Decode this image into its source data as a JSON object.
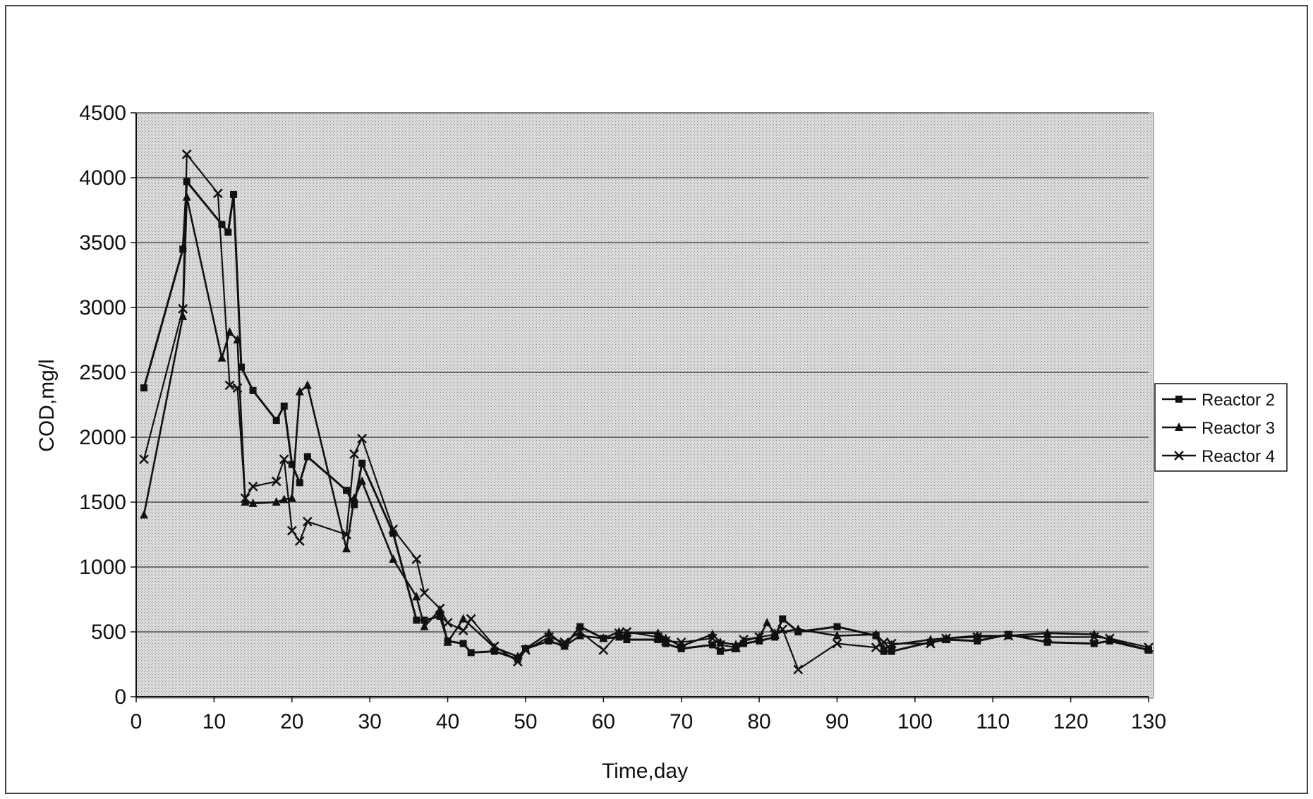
{
  "chart_data": {
    "type": "line",
    "title": "",
    "xlabel": "Time,day",
    "ylabel": "COD,mg/l",
    "xlim": [
      0,
      130
    ],
    "ylim": [
      0,
      4500
    ],
    "x_ticks": [
      0,
      10,
      20,
      30,
      40,
      50,
      60,
      70,
      80,
      90,
      100,
      110,
      120,
      130
    ],
    "y_ticks": [
      0,
      500,
      1000,
      1500,
      2000,
      2500,
      3000,
      3500,
      4000,
      4500
    ],
    "grid": true,
    "legend_position": "right",
    "series": [
      {
        "name": "Reactor 2",
        "marker": "square",
        "points": [
          [
            1,
            2380
          ],
          [
            6,
            3450
          ],
          [
            6.5,
            3970
          ],
          [
            11,
            3640
          ],
          [
            11.8,
            3580
          ],
          [
            12.5,
            3870
          ],
          [
            13.5,
            2540
          ],
          [
            15,
            2360
          ],
          [
            18,
            2130
          ],
          [
            19,
            2240
          ],
          [
            20,
            1790
          ],
          [
            21,
            1650
          ],
          [
            22,
            1850
          ],
          [
            27,
            1590
          ],
          [
            28,
            1480
          ],
          [
            29,
            1800
          ],
          [
            33,
            1260
          ],
          [
            36,
            590
          ],
          [
            37,
            590
          ],
          [
            39,
            620
          ],
          [
            40,
            430
          ],
          [
            42,
            410
          ],
          [
            43,
            340
          ],
          [
            46,
            350
          ],
          [
            49,
            290
          ],
          [
            50,
            370
          ],
          [
            53,
            430
          ],
          [
            55,
            390
          ],
          [
            57,
            540
          ],
          [
            60,
            450
          ],
          [
            62,
            460
          ],
          [
            63,
            440
          ],
          [
            67,
            440
          ],
          [
            68,
            410
          ],
          [
            70,
            370
          ],
          [
            74,
            400
          ],
          [
            75,
            350
          ],
          [
            77,
            370
          ],
          [
            78,
            410
          ],
          [
            80,
            430
          ],
          [
            82,
            460
          ],
          [
            83,
            600
          ],
          [
            85,
            500
          ],
          [
            90,
            540
          ],
          [
            95,
            470
          ],
          [
            96,
            350
          ],
          [
            97,
            350
          ],
          [
            102,
            420
          ],
          [
            104,
            440
          ],
          [
            108,
            430
          ],
          [
            112,
            480
          ],
          [
            117,
            420
          ],
          [
            123,
            410
          ],
          [
            125,
            430
          ],
          [
            130,
            360
          ]
        ]
      },
      {
        "name": "Reactor 3",
        "marker": "triangle",
        "points": [
          [
            1,
            1400
          ],
          [
            6,
            2930
          ],
          [
            6.5,
            3850
          ],
          [
            11,
            2610
          ],
          [
            12,
            2810
          ],
          [
            13,
            2750
          ],
          [
            14,
            1500
          ],
          [
            15,
            1490
          ],
          [
            18,
            1500
          ],
          [
            19,
            1520
          ],
          [
            20,
            1530
          ],
          [
            21,
            2350
          ],
          [
            22,
            2400
          ],
          [
            27,
            1140
          ],
          [
            28,
            1530
          ],
          [
            29,
            1660
          ],
          [
            33,
            1060
          ],
          [
            36,
            770
          ],
          [
            37,
            540
          ],
          [
            39,
            670
          ],
          [
            40,
            420
          ],
          [
            42,
            600
          ],
          [
            46,
            380
          ],
          [
            49,
            310
          ],
          [
            50,
            370
          ],
          [
            53,
            490
          ],
          [
            55,
            390
          ],
          [
            57,
            470
          ],
          [
            60,
            450
          ],
          [
            62,
            500
          ],
          [
            63,
            490
          ],
          [
            67,
            490
          ],
          [
            68,
            450
          ],
          [
            70,
            390
          ],
          [
            74,
            480
          ],
          [
            75,
            420
          ],
          [
            77,
            400
          ],
          [
            78,
            430
          ],
          [
            80,
            460
          ],
          [
            81,
            570
          ],
          [
            82,
            490
          ],
          [
            85,
            520
          ],
          [
            90,
            470
          ],
          [
            95,
            480
          ],
          [
            96,
            370
          ],
          [
            97,
            400
          ],
          [
            102,
            440
          ],
          [
            104,
            450
          ],
          [
            108,
            470
          ],
          [
            112,
            470
          ],
          [
            117,
            490
          ],
          [
            123,
            480
          ],
          [
            125,
            440
          ],
          [
            130,
            360
          ]
        ]
      },
      {
        "name": "Reactor 4",
        "marker": "x",
        "points": [
          [
            1,
            1830
          ],
          [
            6,
            2990
          ],
          [
            6.5,
            4180
          ],
          [
            10.5,
            3880
          ],
          [
            12,
            2400
          ],
          [
            13,
            2380
          ],
          [
            14,
            1530
          ],
          [
            15,
            1620
          ],
          [
            18,
            1660
          ],
          [
            19,
            1830
          ],
          [
            20,
            1280
          ],
          [
            21,
            1200
          ],
          [
            22,
            1350
          ],
          [
            27,
            1250
          ],
          [
            28,
            1870
          ],
          [
            29,
            1990
          ],
          [
            33,
            1290
          ],
          [
            36,
            1060
          ],
          [
            37,
            800
          ],
          [
            39,
            680
          ],
          [
            40,
            570
          ],
          [
            42,
            510
          ],
          [
            43,
            600
          ],
          [
            46,
            390
          ],
          [
            49,
            270
          ],
          [
            50,
            360
          ],
          [
            53,
            460
          ],
          [
            55,
            420
          ],
          [
            57,
            500
          ],
          [
            60,
            360
          ],
          [
            62,
            490
          ],
          [
            63,
            500
          ],
          [
            67,
            460
          ],
          [
            68,
            430
          ],
          [
            70,
            420
          ],
          [
            74,
            450
          ],
          [
            75,
            400
          ],
          [
            77,
            380
          ],
          [
            78,
            440
          ],
          [
            80,
            460
          ],
          [
            82,
            480
          ],
          [
            83,
            520
          ],
          [
            85,
            210
          ],
          [
            90,
            410
          ],
          [
            95,
            380
          ],
          [
            96,
            420
          ],
          [
            97,
            410
          ],
          [
            102,
            410
          ],
          [
            104,
            450
          ],
          [
            108,
            460
          ],
          [
            112,
            470
          ],
          [
            117,
            460
          ],
          [
            123,
            460
          ],
          [
            125,
            450
          ],
          [
            130,
            380
          ]
        ]
      }
    ]
  }
}
